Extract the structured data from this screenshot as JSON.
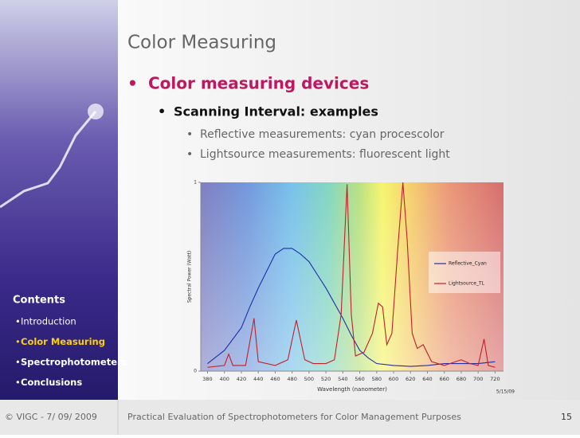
{
  "title": "Color Measuring",
  "bullets": {
    "level1": "Color measuring devices",
    "level2": "Scanning Interval: examples",
    "level3": [
      "Reflective measurements: cyan procescolor",
      "Lightsource measurements: fluorescent light"
    ]
  },
  "sidebar": {
    "heading": "Contents",
    "items": [
      "Introduction",
      "Color Measuring",
      "Spectrophotometers",
      "Conclusions"
    ],
    "active": 1
  },
  "chart": {
    "type": "line",
    "xlabel": "Wavelength (nanometer)",
    "ylabel": "Spectral Power (Watt)",
    "date": "5/15/09",
    "xlim": [
      372,
      730
    ],
    "xticks": [
      380,
      400,
      420,
      440,
      460,
      480,
      500,
      520,
      540,
      560,
      580,
      600,
      620,
      640,
      660,
      680,
      700,
      720
    ],
    "ylim": [
      0,
      1
    ],
    "yticks": [
      0,
      1
    ],
    "series": [
      {
        "name": "Reflective_Cyan",
        "color": "#1f2fa8",
        "x": [
          380,
          400,
          420,
          430,
          440,
          450,
          460,
          470,
          480,
          490,
          500,
          510,
          520,
          530,
          540,
          550,
          560,
          570,
          580,
          600,
          620,
          640,
          660,
          680,
          700,
          720
        ],
        "values": [
          0.04,
          0.11,
          0.23,
          0.34,
          0.44,
          0.53,
          0.62,
          0.65,
          0.65,
          0.62,
          0.58,
          0.51,
          0.44,
          0.36,
          0.28,
          0.19,
          0.11,
          0.07,
          0.04,
          0.03,
          0.025,
          0.03,
          0.04,
          0.04,
          0.04,
          0.05
        ]
      },
      {
        "name": "Lightsource_TL",
        "color": "#c0202a",
        "x": [
          380,
          400,
          405,
          410,
          425,
          435,
          440,
          460,
          475,
          485,
          495,
          505,
          520,
          530,
          538,
          545,
          550,
          555,
          565,
          575,
          582,
          587,
          592,
          598,
          605,
          611,
          616,
          622,
          628,
          635,
          645,
          660,
          680,
          690,
          700,
          707,
          712,
          720
        ],
        "values": [
          0.02,
          0.03,
          0.09,
          0.03,
          0.03,
          0.28,
          0.05,
          0.03,
          0.06,
          0.27,
          0.06,
          0.04,
          0.04,
          0.06,
          0.3,
          0.99,
          0.3,
          0.08,
          0.1,
          0.2,
          0.36,
          0.34,
          0.14,
          0.2,
          0.65,
          1.0,
          0.7,
          0.2,
          0.12,
          0.14,
          0.05,
          0.03,
          0.06,
          0.04,
          0.03,
          0.17,
          0.03,
          0.02
        ]
      }
    ]
  },
  "footer": {
    "left": "© VIGC - 7/ 09/ 2009",
    "center": "Practical Evaluation of Spectrophotometers for Color Management Purposes",
    "page": "15"
  }
}
